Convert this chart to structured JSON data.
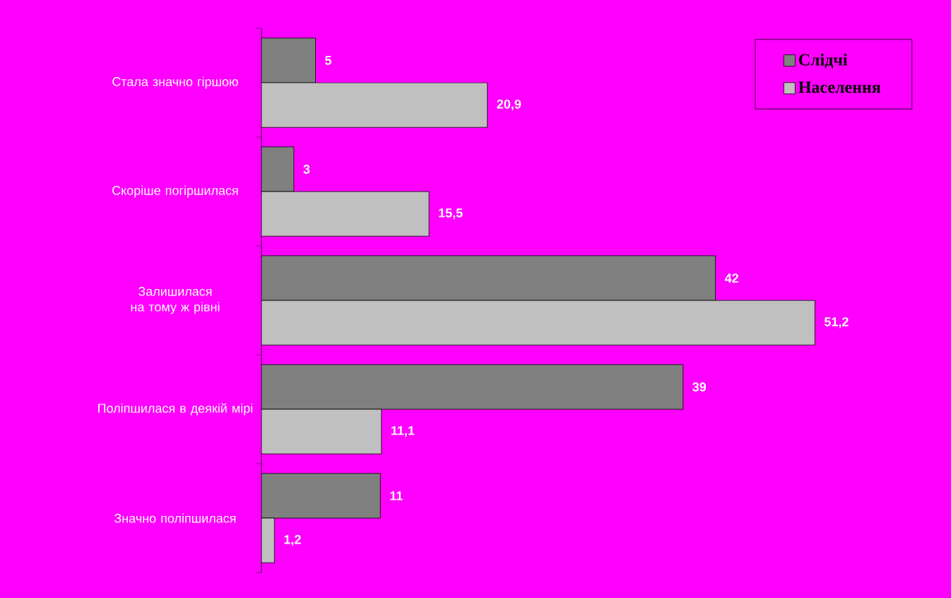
{
  "chart_data": {
    "type": "bar",
    "orientation": "horizontal",
    "categories": [
      "Стала значно гіршою",
      "Скоріше погіршилася",
      "Залишилася на тому ж рівні",
      "Поліпшилася в деякій мірі",
      "Значно поліпшилася"
    ],
    "series": [
      {
        "name": "Слідчі",
        "color": "#808080",
        "values": [
          5,
          3,
          42,
          39,
          11
        ],
        "value_labels": [
          "5",
          "3",
          "42",
          "39",
          "11"
        ]
      },
      {
        "name": "Населення",
        "color": "#c0c0c0",
        "values": [
          20.9,
          15.5,
          51.2,
          11.1,
          1.2
        ],
        "value_labels": [
          "20,9",
          "15,5",
          "51,2",
          "11,1",
          "1,2"
        ]
      }
    ],
    "legend": "top right"
  }
}
